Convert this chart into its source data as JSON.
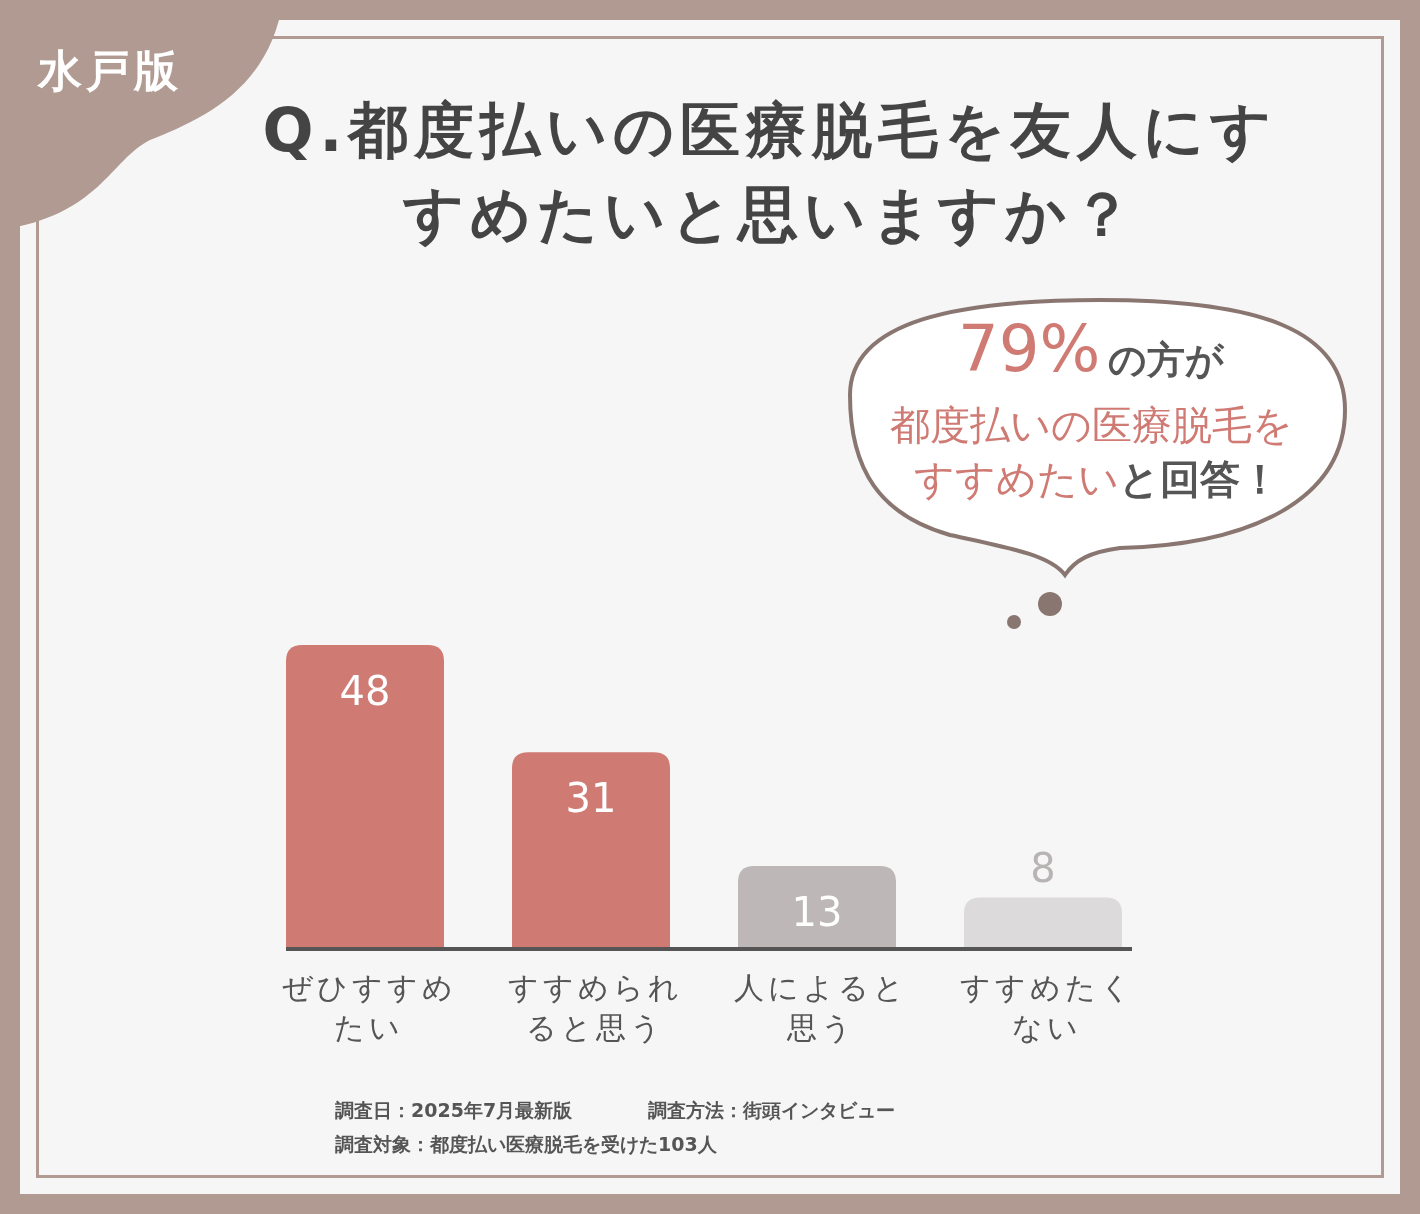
{
  "chart_data": {
    "type": "bar",
    "title": "Q.都度払いの医療脱毛を友人にすすめたいと思いますか？",
    "categories": [
      "ぜひすすめたい",
      "すすめられると思う",
      "人によると思う",
      "すすめたくない"
    ],
    "values": [
      48,
      31,
      13,
      8
    ],
    "colors": [
      "#d07a74",
      "#d07a74",
      "#bdb8b7",
      "#dcdada"
    ],
    "data_labels": true,
    "annotations": [
      "水戸版",
      "79%",
      "の方が",
      "都度払いの医療脱毛を",
      "すすめたい",
      "と回答！",
      "調査日：2025年7月最新版",
      "調査方法：街頭インタビュー",
      "調査対象：都度払い医療脱毛を受けた103人"
    ]
  }
}
